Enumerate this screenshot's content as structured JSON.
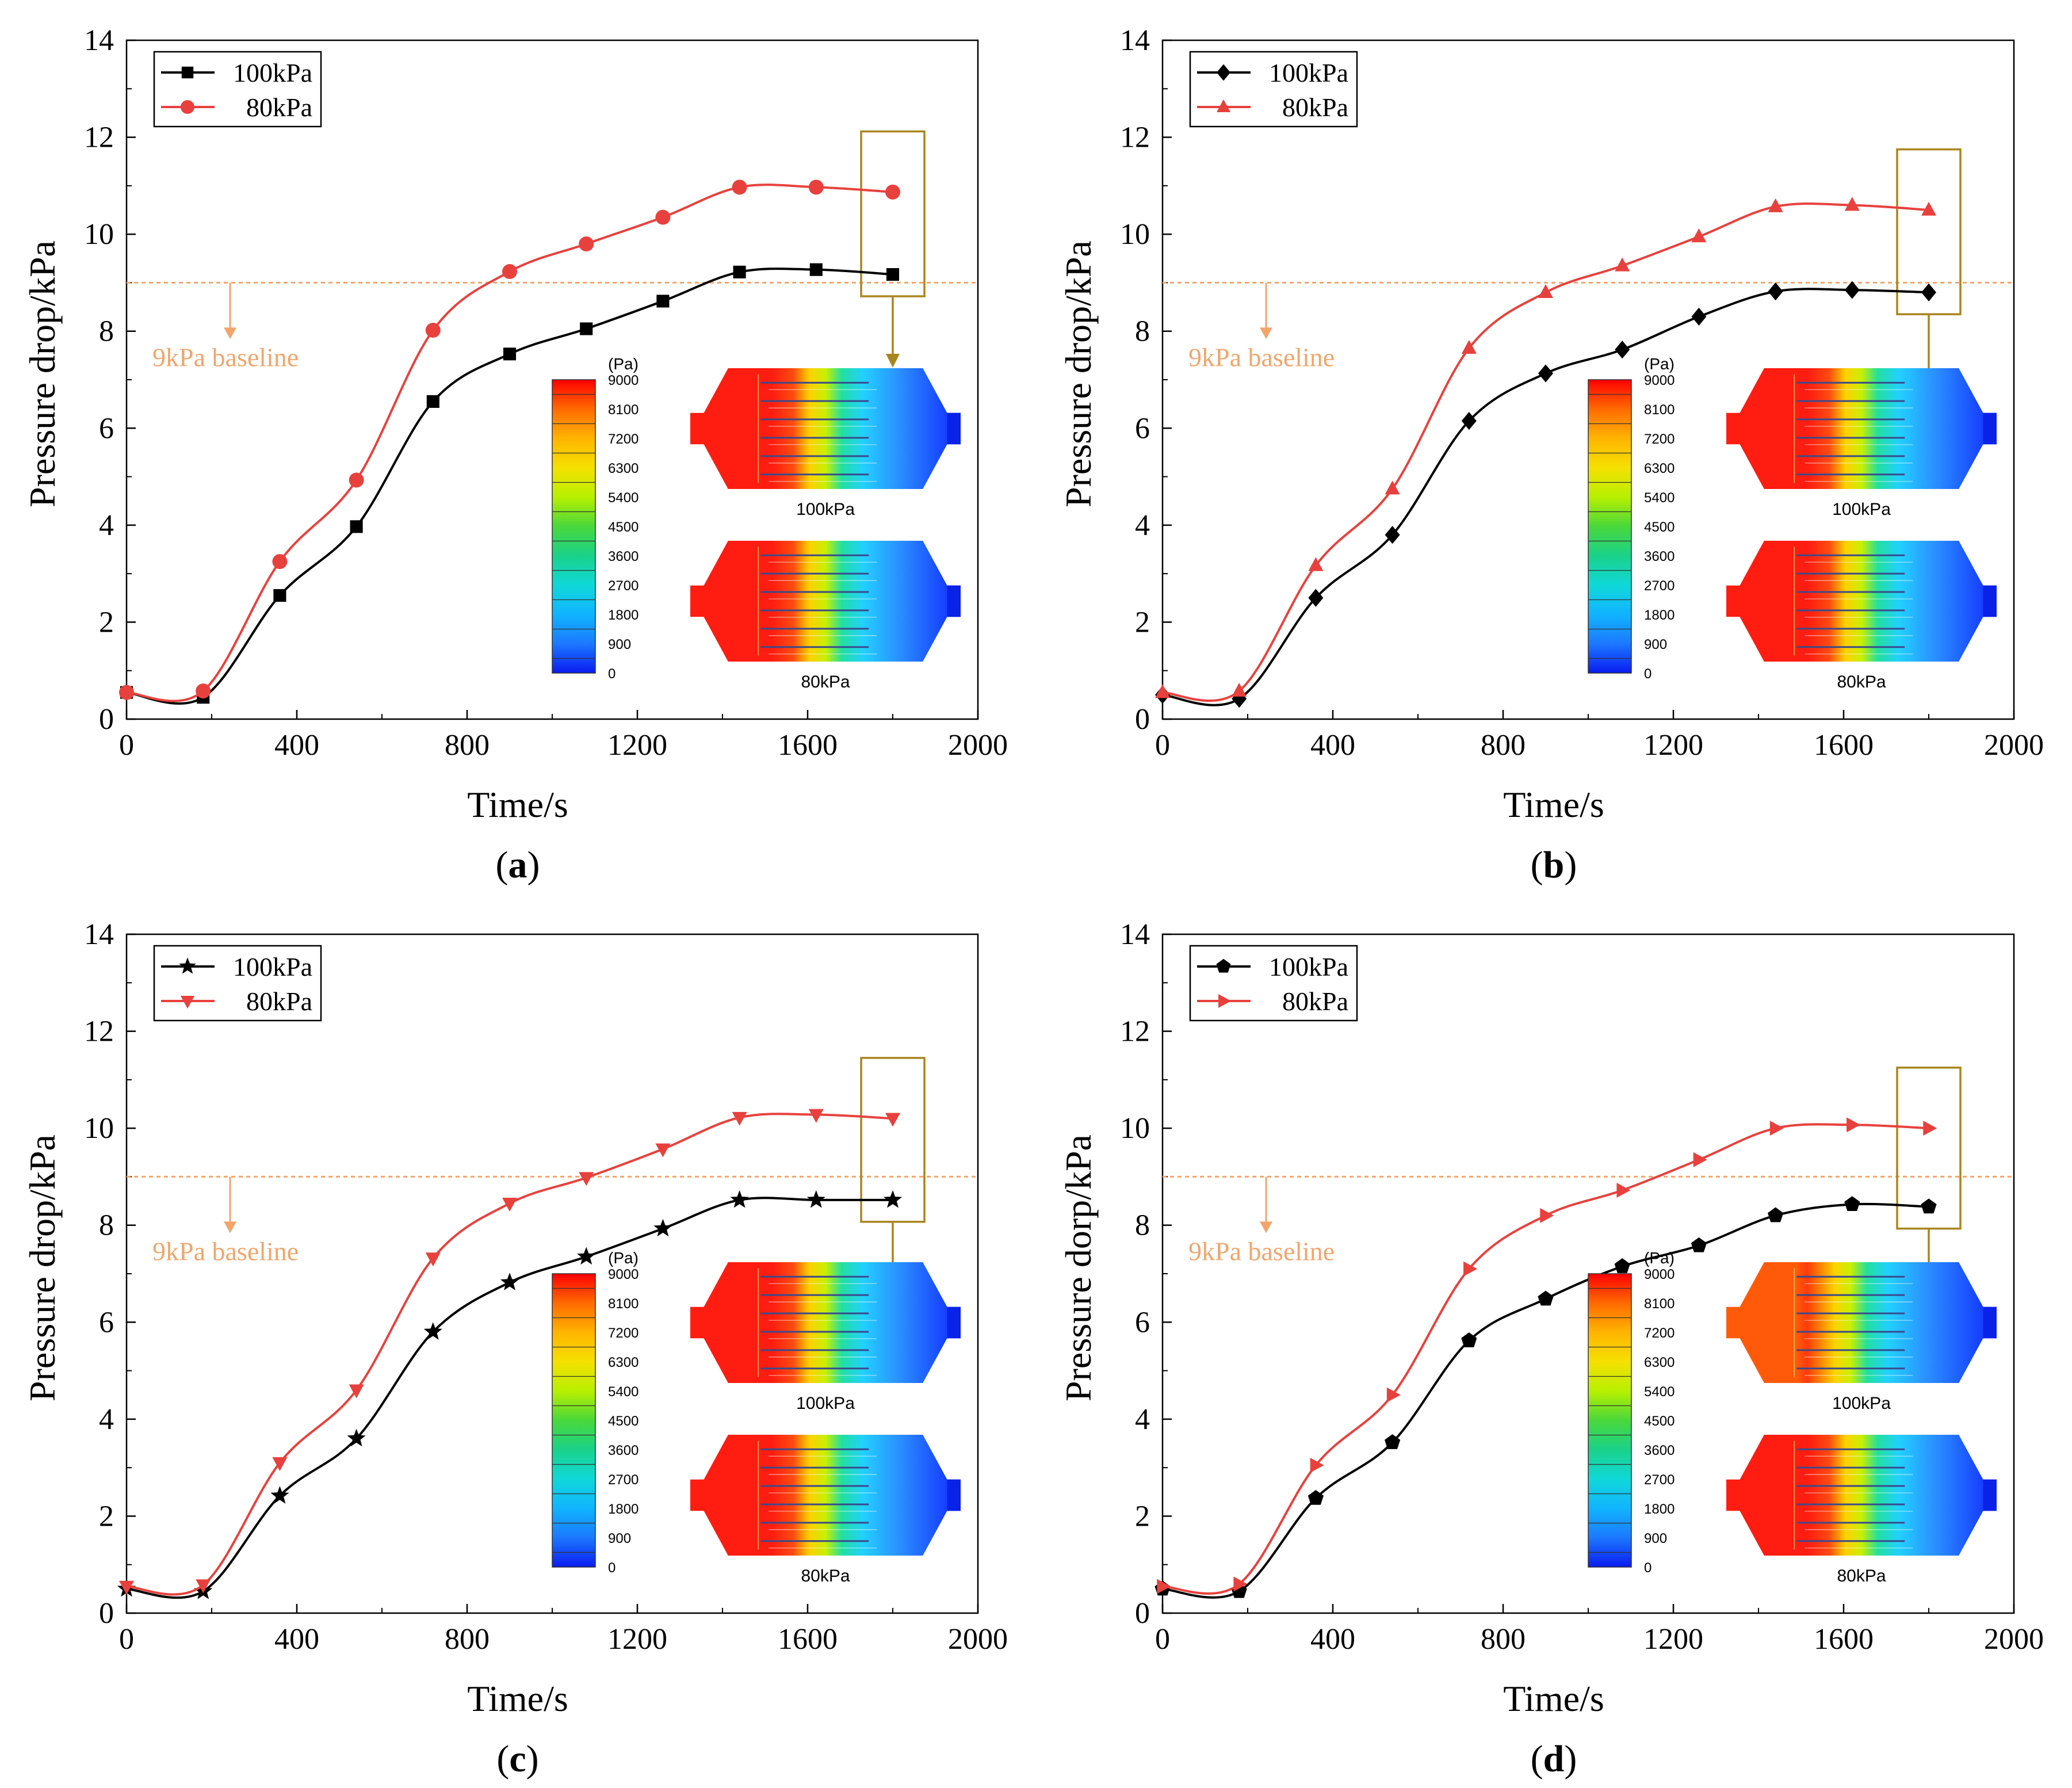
{
  "chart_data": [
    {
      "type": "line",
      "panel": "a",
      "caption": "a",
      "xlabel": "Time/s",
      "ylabel": "Pressure drop/kPa",
      "xlim": [
        0,
        2000
      ],
      "ylim": [
        0,
        14
      ],
      "xticks": [
        0,
        400,
        800,
        1200,
        1600,
        2000
      ],
      "yticks": [
        0,
        2,
        4,
        6,
        8,
        10,
        12,
        14
      ],
      "x": [
        0,
        180,
        360,
        540,
        720,
        900,
        1080,
        1260,
        1440,
        1620,
        1800
      ],
      "series": [
        {
          "name": "100kPa",
          "marker": "square",
          "color": "#000000",
          "values": [
            0.55,
            0.45,
            2.55,
            3.97,
            6.55,
            7.53,
            8.05,
            8.62,
            9.22,
            9.27,
            9.17
          ]
        },
        {
          "name": "80kPa",
          "marker": "circle",
          "color": "#e8413d",
          "values": [
            0.55,
            0.58,
            3.25,
            4.93,
            8.02,
            9.23,
            9.8,
            10.35,
            10.97,
            10.97,
            10.87
          ]
        }
      ],
      "reference_line": {
        "y": 9,
        "label": "9kPa baseline"
      },
      "colorbar": {
        "unit": "(Pa)",
        "ticks": [
          "9000",
          "8100",
          "7200",
          "6300",
          "5400",
          "4500",
          "3600",
          "2700",
          "1800",
          "900",
          "0"
        ]
      },
      "contour_labels": [
        "100kPa",
        "80kPa"
      ]
    },
    {
      "type": "line",
      "panel": "b",
      "caption": "b",
      "xlabel": "Time/s",
      "ylabel": "Pressure drop/kPa",
      "xlim": [
        0,
        2000
      ],
      "ylim": [
        0,
        14
      ],
      "xticks": [
        0,
        400,
        800,
        1200,
        1600,
        2000
      ],
      "yticks": [
        0,
        2,
        4,
        6,
        8,
        10,
        12,
        14
      ],
      "x": [
        0,
        180,
        360,
        540,
        720,
        900,
        1080,
        1260,
        1440,
        1620,
        1800
      ],
      "series": [
        {
          "name": "100kPa",
          "marker": "diamond",
          "color": "#000000",
          "values": [
            0.5,
            0.42,
            2.5,
            3.8,
            6.15,
            7.13,
            7.62,
            8.3,
            8.82,
            8.85,
            8.8
          ]
        },
        {
          "name": "80kPa",
          "marker": "triangle-up",
          "color": "#e8413d",
          "values": [
            0.55,
            0.58,
            3.17,
            4.75,
            7.65,
            8.8,
            9.35,
            9.95,
            10.57,
            10.6,
            10.5
          ]
        }
      ],
      "reference_line": {
        "y": 9,
        "label": "9kPa baseline"
      },
      "colorbar": {
        "unit": "(Pa)",
        "ticks": [
          "9000",
          "8100",
          "7200",
          "6300",
          "5400",
          "4500",
          "3600",
          "2700",
          "1800",
          "900",
          "0"
        ]
      },
      "contour_labels": [
        "100kPa",
        "80kPa"
      ]
    },
    {
      "type": "line",
      "panel": "c",
      "caption": "c",
      "xlabel": "Time/s",
      "ylabel": "Pressure drop/kPa",
      "xlim": [
        0,
        2000
      ],
      "ylim": [
        0,
        14
      ],
      "xticks": [
        0,
        400,
        800,
        1200,
        1600,
        2000
      ],
      "yticks": [
        0,
        2,
        4,
        6,
        8,
        10,
        12,
        14
      ],
      "x": [
        0,
        180,
        360,
        540,
        720,
        900,
        1080,
        1260,
        1440,
        1620,
        1800
      ],
      "series": [
        {
          "name": "100kPa",
          "marker": "star",
          "color": "#000000",
          "values": [
            0.5,
            0.45,
            2.42,
            3.6,
            5.8,
            6.82,
            7.35,
            7.93,
            8.52,
            8.52,
            8.52
          ]
        },
        {
          "name": "80kPa",
          "marker": "triangle-down",
          "color": "#e8413d",
          "values": [
            0.55,
            0.58,
            3.1,
            4.6,
            7.32,
            8.45,
            8.98,
            9.57,
            10.22,
            10.28,
            10.2
          ]
        }
      ],
      "reference_line": {
        "y": 9,
        "label": "9kPa baseline"
      },
      "colorbar": {
        "unit": "(Pa)",
        "ticks": [
          "9000",
          "8100",
          "7200",
          "6300",
          "5400",
          "4500",
          "3600",
          "2700",
          "1800",
          "900",
          "0"
        ]
      },
      "contour_labels": [
        "100kPa",
        "80kPa"
      ]
    },
    {
      "type": "line",
      "panel": "d",
      "caption": "d",
      "xlabel": "Time/s",
      "ylabel": "Pressure dorp/kPa",
      "xlim": [
        0,
        2000
      ],
      "ylim": [
        0,
        14
      ],
      "xticks": [
        0,
        400,
        800,
        1200,
        1600,
        2000
      ],
      "yticks": [
        0,
        2,
        4,
        6,
        8,
        10,
        12,
        14
      ],
      "x": [
        0,
        180,
        360,
        540,
        720,
        900,
        1080,
        1260,
        1440,
        1620,
        1800
      ],
      "series": [
        {
          "name": "100kPa",
          "marker": "pentagon",
          "color": "#000000",
          "values": [
            0.5,
            0.45,
            2.37,
            3.52,
            5.62,
            6.48,
            7.15,
            7.58,
            8.2,
            8.43,
            8.38
          ]
        },
        {
          "name": "80kPa",
          "marker": "triangle-right",
          "color": "#e8413d",
          "values": [
            0.55,
            0.6,
            3.05,
            4.5,
            7.1,
            8.2,
            8.72,
            9.35,
            10.0,
            10.07,
            10.0
          ]
        }
      ],
      "reference_line": {
        "y": 9,
        "label": "9kPa baseline"
      },
      "colorbar": {
        "unit": "(Pa)",
        "ticks": [
          "9000",
          "8100",
          "7200",
          "6300",
          "5400",
          "4500",
          "3600",
          "2700",
          "1800",
          "900",
          "0"
        ]
      },
      "contour_labels": [
        "100kPa",
        "80kPa"
      ]
    }
  ],
  "colors": {
    "series_black": "#000000",
    "series_red": "#e8413d",
    "baseline": "#f2a56b",
    "highlight_box": "#a8861e"
  }
}
